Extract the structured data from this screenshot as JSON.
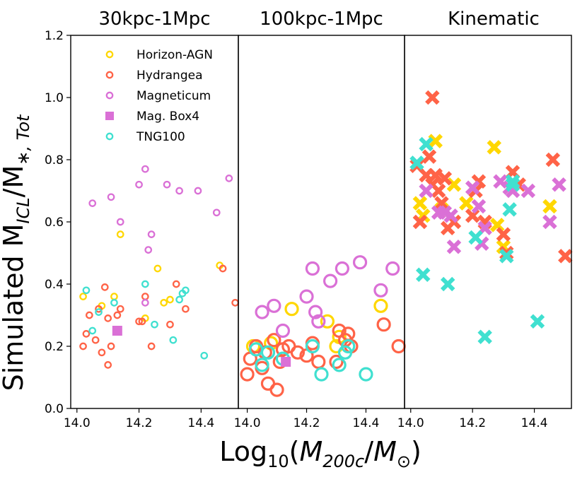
{
  "colors": {
    "horizon": "#FFD700",
    "hydrangea": "#FF6347",
    "magneticum": "#DA70D6",
    "tng": "#40E0D0",
    "axis": "#000000"
  },
  "chart_data": {
    "type": "scatter",
    "ylabel": "Simulated M_ICL/M_*,Tot",
    "xlabel": "Log10(M200c/M⊙)",
    "ylim": [
      0.0,
      1.2
    ],
    "yticks": [
      "0.0",
      "0.2",
      "0.4",
      "0.6",
      "0.8",
      "1.0",
      "1.2"
    ],
    "ytick_values": [
      0.0,
      0.2,
      0.4,
      0.6,
      0.8,
      1.0,
      1.2
    ],
    "legend": {
      "location": "top-left of first panel",
      "entries": [
        {
          "label": "Horizon-AGN",
          "series": "horizon",
          "marker": "ring"
        },
        {
          "label": "Hydrangea",
          "series": "hydrangea",
          "marker": "ring"
        },
        {
          "label": "Magneticum",
          "series": "magneticum",
          "marker": "ring"
        },
        {
          "label": "Mag. Box4",
          "series": "magneticum",
          "marker": "square"
        },
        {
          "label": "TNG100",
          "series": "tng",
          "marker": "ring"
        }
      ]
    },
    "panels": [
      {
        "title": "30kpc-1Mpc",
        "marker_style": "small-ring",
        "xlim": [
          13.98,
          14.52
        ],
        "xticks": [
          "14.0",
          "14.2",
          "14.4"
        ],
        "xtick_values": [
          14.0,
          14.2,
          14.4
        ],
        "series": [
          {
            "name": "Horizon-AGN",
            "color_key": "horizon",
            "points": [
              [
                14.02,
                0.36
              ],
              [
                14.08,
                0.33
              ],
              [
                14.12,
                0.36
              ],
              [
                14.14,
                0.56
              ],
              [
                14.22,
                0.29
              ],
              [
                14.26,
                0.45
              ],
              [
                14.28,
                0.34
              ],
              [
                14.3,
                0.35
              ],
              [
                14.46,
                0.46
              ]
            ]
          },
          {
            "name": "Hydrangea",
            "color_key": "hydrangea",
            "points": [
              [
                14.02,
                0.2
              ],
              [
                14.03,
                0.24
              ],
              [
                14.04,
                0.3
              ],
              [
                14.06,
                0.22
              ],
              [
                14.07,
                0.32
              ],
              [
                14.08,
                0.18
              ],
              [
                14.09,
                0.39
              ],
              [
                14.1,
                0.29
              ],
              [
                14.1,
                0.14
              ],
              [
                14.11,
                0.2
              ],
              [
                14.13,
                0.3
              ],
              [
                14.14,
                0.32
              ],
              [
                14.2,
                0.28
              ],
              [
                14.21,
                0.28
              ],
              [
                14.22,
                0.36
              ],
              [
                14.24,
                0.2
              ],
              [
                14.3,
                0.27
              ],
              [
                14.32,
                0.4
              ],
              [
                14.35,
                0.32
              ],
              [
                14.47,
                0.45
              ],
              [
                14.51,
                0.34
              ]
            ]
          },
          {
            "name": "Magneticum",
            "color_key": "magneticum",
            "points": [
              [
                14.05,
                0.66
              ],
              [
                14.11,
                0.68
              ],
              [
                14.14,
                0.6
              ],
              [
                14.2,
                0.72
              ],
              [
                14.22,
                0.77
              ],
              [
                14.23,
                0.51
              ],
              [
                14.24,
                0.56
              ],
              [
                14.22,
                0.34
              ],
              [
                14.29,
                0.72
              ],
              [
                14.33,
                0.7
              ],
              [
                14.39,
                0.7
              ],
              [
                14.45,
                0.63
              ],
              [
                14.49,
                0.74
              ]
            ]
          },
          {
            "name": "TNG100",
            "color_key": "tng",
            "points": [
              [
                14.03,
                0.38
              ],
              [
                14.05,
                0.25
              ],
              [
                14.07,
                0.31
              ],
              [
                14.12,
                0.34
              ],
              [
                14.22,
                0.4
              ],
              [
                14.25,
                0.27
              ],
              [
                14.31,
                0.22
              ],
              [
                14.33,
                0.35
              ],
              [
                14.35,
                0.38
              ],
              [
                14.41,
                0.17
              ],
              [
                14.34,
                0.37
              ]
            ]
          },
          {
            "name": "Mag. Box4",
            "color_key": "magneticum",
            "marker": "square",
            "points": [
              [
                14.13,
                0.25
              ]
            ]
          }
        ]
      },
      {
        "title": "100kpc-1Mpc",
        "marker_style": "large-ring",
        "xlim": [
          13.97,
          14.53
        ],
        "xticks": [
          "14.0",
          "14.2",
          "14.4"
        ],
        "xtick_values": [
          14.0,
          14.2,
          14.4
        ],
        "series": [
          {
            "name": "Horizon-AGN",
            "color_key": "horizon",
            "points": [
              [
                14.02,
                0.2
              ],
              [
                14.08,
                0.21
              ],
              [
                14.15,
                0.32
              ],
              [
                14.27,
                0.28
              ],
              [
                14.3,
                0.2
              ],
              [
                14.31,
                0.23
              ],
              [
                14.45,
                0.33
              ]
            ]
          },
          {
            "name": "Hydrangea",
            "color_key": "hydrangea",
            "points": [
              [
                14.0,
                0.11
              ],
              [
                14.01,
                0.16
              ],
              [
                14.03,
                0.2
              ],
              [
                14.05,
                0.13
              ],
              [
                14.06,
                0.18
              ],
              [
                14.07,
                0.08
              ],
              [
                14.09,
                0.22
              ],
              [
                14.1,
                0.06
              ],
              [
                14.11,
                0.15
              ],
              [
                14.12,
                0.19
              ],
              [
                14.14,
                0.2
              ],
              [
                14.17,
                0.18
              ],
              [
                14.2,
                0.17
              ],
              [
                14.22,
                0.21
              ],
              [
                14.24,
                0.15
              ],
              [
                14.3,
                0.15
              ],
              [
                14.31,
                0.25
              ],
              [
                14.33,
                0.22
              ],
              [
                14.34,
                0.24
              ],
              [
                14.35,
                0.2
              ],
              [
                14.46,
                0.27
              ],
              [
                14.51,
                0.2
              ]
            ]
          },
          {
            "name": "Magneticum",
            "color_key": "magneticum",
            "points": [
              [
                14.05,
                0.31
              ],
              [
                14.09,
                0.33
              ],
              [
                14.12,
                0.25
              ],
              [
                14.2,
                0.36
              ],
              [
                14.22,
                0.45
              ],
              [
                14.23,
                0.31
              ],
              [
                14.24,
                0.28
              ],
              [
                14.28,
                0.41
              ],
              [
                14.32,
                0.45
              ],
              [
                14.38,
                0.47
              ],
              [
                14.45,
                0.38
              ],
              [
                14.49,
                0.45
              ]
            ]
          },
          {
            "name": "TNG100",
            "color_key": "tng",
            "points": [
              [
                14.03,
                0.19
              ],
              [
                14.05,
                0.14
              ],
              [
                14.07,
                0.18
              ],
              [
                14.12,
                0.16
              ],
              [
                14.22,
                0.2
              ],
              [
                14.25,
                0.11
              ],
              [
                14.31,
                0.14
              ],
              [
                14.33,
                0.18
              ],
              [
                14.4,
                0.11
              ],
              [
                14.34,
                0.2
              ]
            ]
          },
          {
            "name": "Mag. Box4",
            "color_key": "magneticum",
            "marker": "square",
            "points": [
              [
                14.13,
                0.15
              ]
            ]
          }
        ]
      },
      {
        "title": "Kinematic",
        "marker_style": "cross",
        "xlim": [
          13.98,
          14.52
        ],
        "xticks": [
          "14.0",
          "14.2",
          "14.4"
        ],
        "xtick_values": [
          14.0,
          14.2,
          14.4
        ],
        "series": [
          {
            "name": "Horizon-AGN",
            "color_key": "horizon",
            "points": [
              [
                14.03,
                0.66
              ],
              [
                14.04,
                0.62
              ],
              [
                14.08,
                0.86
              ],
              [
                14.1,
                0.64
              ],
              [
                14.14,
                0.72
              ],
              [
                14.18,
                0.66
              ],
              [
                14.27,
                0.84
              ],
              [
                14.28,
                0.59
              ],
              [
                14.3,
                0.52
              ],
              [
                14.45,
                0.65
              ]
            ]
          },
          {
            "name": "Hydrangea",
            "color_key": "hydrangea",
            "points": [
              [
                14.02,
                0.78
              ],
              [
                14.03,
                0.6
              ],
              [
                14.05,
                0.75
              ],
              [
                14.06,
                0.81
              ],
              [
                14.07,
                1.0
              ],
              [
                14.07,
                0.72
              ],
              [
                14.08,
                0.75
              ],
              [
                14.09,
                0.7
              ],
              [
                14.1,
                0.66
              ],
              [
                14.11,
                0.74
              ],
              [
                14.12,
                0.58
              ],
              [
                14.14,
                0.6
              ],
              [
                14.2,
                0.62
              ],
              [
                14.21,
                0.7
              ],
              [
                14.22,
                0.73
              ],
              [
                14.24,
                0.6
              ],
              [
                14.3,
                0.56
              ],
              [
                14.31,
                0.5
              ],
              [
                14.33,
                0.76
              ],
              [
                14.35,
                0.72
              ],
              [
                14.46,
                0.8
              ],
              [
                14.5,
                0.49
              ]
            ]
          },
          {
            "name": "Magneticum",
            "color_key": "magneticum",
            "points": [
              [
                14.05,
                0.7
              ],
              [
                14.09,
                0.63
              ],
              [
                14.11,
                0.63
              ],
              [
                14.13,
                0.62
              ],
              [
                14.14,
                0.52
              ],
              [
                14.2,
                0.71
              ],
              [
                14.22,
                0.65
              ],
              [
                14.23,
                0.53
              ],
              [
                14.24,
                0.58
              ],
              [
                14.29,
                0.73
              ],
              [
                14.32,
                0.71
              ],
              [
                14.33,
                0.7
              ],
              [
                14.38,
                0.7
              ],
              [
                14.45,
                0.6
              ],
              [
                14.48,
                0.72
              ]
            ]
          },
          {
            "name": "TNG100",
            "color_key": "tng",
            "points": [
              [
                14.02,
                0.79
              ],
              [
                14.04,
                0.43
              ],
              [
                14.05,
                0.85
              ],
              [
                14.12,
                0.4
              ],
              [
                14.21,
                0.55
              ],
              [
                14.24,
                0.23
              ],
              [
                14.31,
                0.49
              ],
              [
                14.32,
                0.64
              ],
              [
                14.33,
                0.72
              ],
              [
                14.41,
                0.28
              ],
              [
                14.33,
                0.73
              ]
            ]
          }
        ]
      }
    ]
  }
}
